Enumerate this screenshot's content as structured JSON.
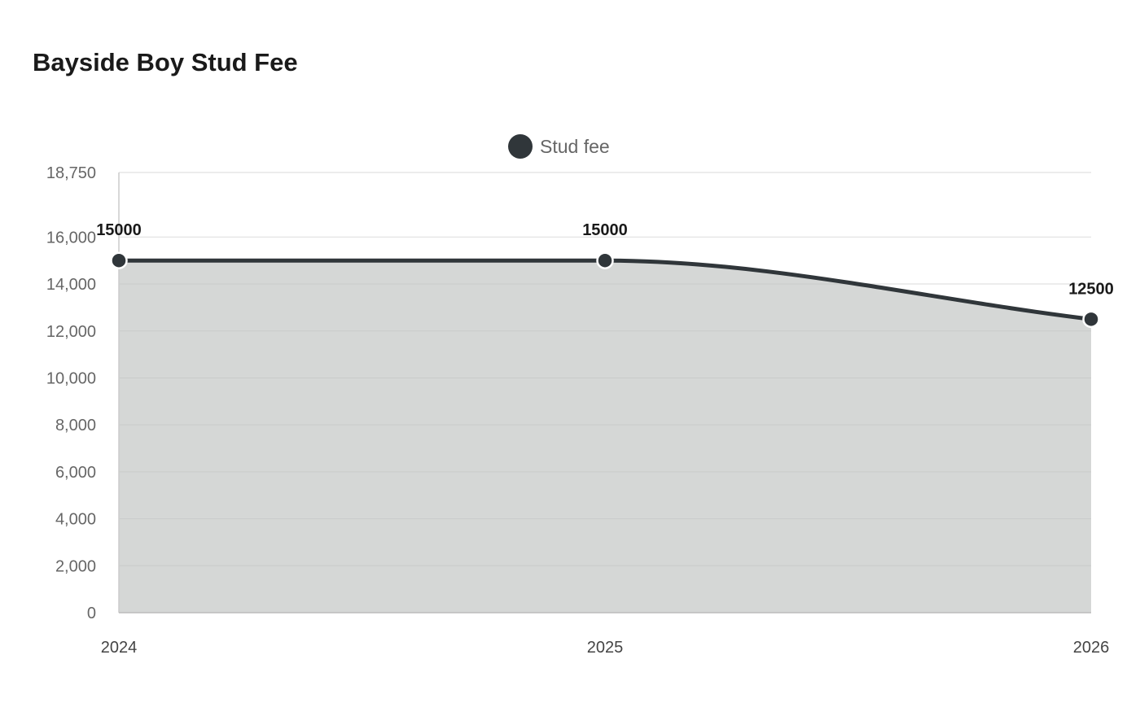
{
  "chart_data": {
    "type": "area",
    "title": "Bayside Boy Stud Fee",
    "categories": [
      "2024",
      "2025",
      "2026"
    ],
    "series": [
      {
        "name": "Stud fee",
        "values": [
          15000,
          15000,
          12500
        ],
        "color": "#30363a",
        "fill": "#d5d7d6"
      }
    ],
    "y_ticks": [
      0,
      2000,
      4000,
      6000,
      8000,
      10000,
      12000,
      14000,
      16000,
      18750
    ],
    "y_tick_labels": [
      "0",
      "2,000",
      "4,000",
      "6,000",
      "8,000",
      "10,000",
      "12,000",
      "14,000",
      "16,000",
      "18,750"
    ],
    "ylim": [
      0,
      18750
    ],
    "grid": true,
    "legend_position": "top-center"
  }
}
